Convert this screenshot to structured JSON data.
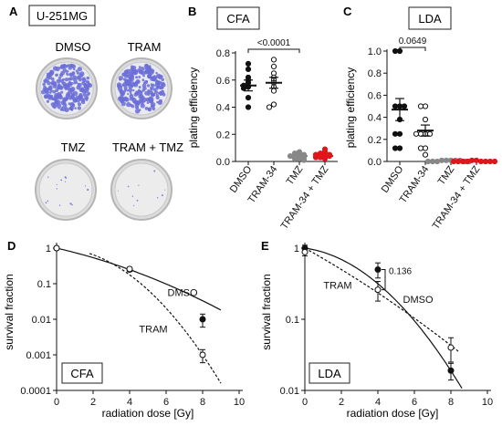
{
  "figure": {
    "panels": {
      "A": {
        "letter": "A",
        "cell_line": "U-251MG",
        "dishes": [
          "DMSO",
          "TRAM",
          "TMZ",
          "TRAM + TMZ"
        ]
      }
    }
  },
  "colors": {
    "black": "#111111",
    "grey": "#888888",
    "red": "#e0161b",
    "dish_stain": "#6b6fd6"
  },
  "chart_data": [
    {
      "id": "B",
      "letter": "B",
      "type": "scatter",
      "title": "CFA",
      "xlabel": "",
      "ylabel": "plating efficiency",
      "ylim": [
        0,
        0.8
      ],
      "yticks": [
        0.0,
        0.2,
        0.4,
        0.6,
        0.8
      ],
      "categories": [
        "DMSO",
        "TRAM-34",
        "TMZ",
        "TRAM-34 + TMZ"
      ],
      "groups": [
        {
          "name": "DMSO",
          "color": "#111111",
          "filled": true,
          "points": [
            0.72,
            0.68,
            0.62,
            0.6,
            0.58,
            0.56,
            0.55,
            0.54,
            0.47,
            0.4
          ],
          "mean": 0.56,
          "sem": 0.04
        },
        {
          "name": "TRAM-34",
          "color": "#111111",
          "filled": false,
          "points": [
            0.75,
            0.7,
            0.65,
            0.62,
            0.6,
            0.58,
            0.55,
            0.52,
            0.42,
            0.4
          ],
          "mean": 0.58,
          "sem": 0.04
        },
        {
          "name": "TMZ",
          "color": "#888888",
          "filled": true,
          "points": [
            0.07,
            0.06,
            0.05,
            0.04,
            0.03,
            0.02,
            0.03,
            0.04,
            0.02,
            0.01
          ],
          "mean": 0.04,
          "sem": 0.01
        },
        {
          "name": "TRAM-34 + TMZ",
          "color": "#e0161b",
          "filled": true,
          "points": [
            0.09,
            0.07,
            0.06,
            0.05,
            0.04,
            0.03,
            0.02,
            0.04,
            0.05,
            0.03
          ],
          "mean": 0.04,
          "sem": 0.01
        }
      ],
      "annotation": {
        "text": "<0.0001",
        "between": [
          "DMSO",
          "TMZ"
        ]
      }
    },
    {
      "id": "C",
      "letter": "C",
      "type": "scatter",
      "title": "LDA",
      "xlabel": "",
      "ylabel": "plating efficiency",
      "ylim": [
        0,
        1.0
      ],
      "yticks": [
        0.0,
        0.2,
        0.4,
        0.6,
        0.8,
        1.0
      ],
      "categories": [
        "DMSO",
        "TRAM-34",
        "TMZ",
        "TRAM-34 + TMZ"
      ],
      "groups": [
        {
          "name": "DMSO",
          "color": "#111111",
          "filled": true,
          "points": [
            1.0,
            1.0,
            0.5,
            0.5,
            0.5,
            0.38,
            0.25,
            0.25,
            0.12,
            0.12
          ],
          "mean": 0.47,
          "sem": 0.1
        },
        {
          "name": "TRAM-34",
          "color": "#111111",
          "filled": false,
          "points": [
            0.5,
            0.5,
            0.38,
            0.25,
            0.25,
            0.25,
            0.25,
            0.12,
            0.12,
            0.06
          ],
          "mean": 0.28,
          "sem": 0.05
        },
        {
          "name": "TMZ",
          "color": "#888888",
          "filled": true,
          "points": [
            0.01,
            0.01,
            0.01,
            0.01,
            0.01,
            0.0,
            0.0,
            0.0,
            0.0,
            0.0
          ],
          "mean": 0.005,
          "sem": 0.002
        },
        {
          "name": "TRAM-34 + TMZ",
          "color": "#e0161b",
          "filled": true,
          "points": [
            0.01,
            0.01,
            0.0,
            0.0,
            0.0,
            0.0,
            0.0,
            0.0,
            0.0,
            0.0
          ],
          "mean": 0.003,
          "sem": 0.001
        }
      ],
      "annotation": {
        "text": "0.0649",
        "between": [
          "DMSO",
          "TRAM-34"
        ]
      }
    },
    {
      "id": "D",
      "letter": "D",
      "type": "line",
      "title": "CFA",
      "xlabel": "radiation dose [Gy]",
      "ylabel": "survival fraction",
      "xlim": [
        0,
        10
      ],
      "xticks": [
        0,
        2,
        4,
        6,
        8,
        10
      ],
      "ylim": [
        0.0001,
        1
      ],
      "yscale": "log",
      "yticks": [
        {
          "v": 1,
          "label": "1"
        },
        {
          "v": 0.1,
          "label": "0.1"
        },
        {
          "v": 0.01,
          "label": "0.01"
        },
        {
          "v": 0.001,
          "label": "0.001"
        },
        {
          "v": 0.0001,
          "label": "0.0001"
        }
      ],
      "series": [
        {
          "name": "DMSO",
          "style": "solid",
          "marker": "filled",
          "x": [
            0,
            4,
            8
          ],
          "y": [
            1.0,
            0.25,
            0.01
          ],
          "err": [
            0.0,
            0.03,
            0.004
          ],
          "fit": {
            "alpha": 0.27,
            "beta": 0.0195,
            "x_start": 0,
            "x_end": 9
          }
        },
        {
          "name": "TRAM",
          "style": "dashed",
          "marker": "open",
          "x": [
            0,
            4,
            8
          ],
          "y": [
            1.0,
            0.26,
            0.001
          ],
          "err": [
            0.0,
            0.03,
            0.0004
          ],
          "fit": {
            "alpha": 0.0,
            "beta": 0.108,
            "x_start": 1.8,
            "x_end": 9
          }
        }
      ],
      "labels": [
        {
          "series": "DMSO",
          "text": "DMSO"
        },
        {
          "series": "TRAM",
          "text": "TRAM"
        }
      ]
    },
    {
      "id": "E",
      "letter": "E",
      "type": "line",
      "title": "LDA",
      "xlabel": "radiation dose [Gy]",
      "ylabel": "survival fraction",
      "xlim": [
        0,
        10
      ],
      "xticks": [
        0,
        2,
        4,
        6,
        8,
        10
      ],
      "ylim": [
        0.01,
        1
      ],
      "yscale": "log",
      "yticks": [
        {
          "v": 1,
          "label": "1"
        },
        {
          "v": 0.1,
          "label": "0.1"
        },
        {
          "v": 0.01,
          "label": "0.01"
        }
      ],
      "series": [
        {
          "name": "DMSO",
          "style": "solid",
          "marker": "filled",
          "x": [
            0,
            4,
            8
          ],
          "y": [
            1.0,
            0.5,
            0.019
          ],
          "err": [
            0.1,
            0.12,
            0.005
          ],
          "fit": {
            "alpha": 0.08,
            "beta": 0.052,
            "x_start": 0,
            "x_end": 8.9
          }
        },
        {
          "name": "TRAM",
          "style": "dashed",
          "marker": "open",
          "x": [
            0,
            4,
            8
          ],
          "y": [
            0.88,
            0.26,
            0.04
          ],
          "err": [
            0.1,
            0.08,
            0.015
          ],
          "fit": {
            "alpha": 0.33,
            "beta": 0.008,
            "x_start": 0,
            "x_end": 8.4
          }
        }
      ],
      "labels": [
        {
          "series": "TRAM",
          "text": "TRAM"
        },
        {
          "series": "DMSO",
          "text": "DMSO"
        }
      ],
      "annotation": {
        "text": "0.136",
        "x": 4
      }
    }
  ]
}
